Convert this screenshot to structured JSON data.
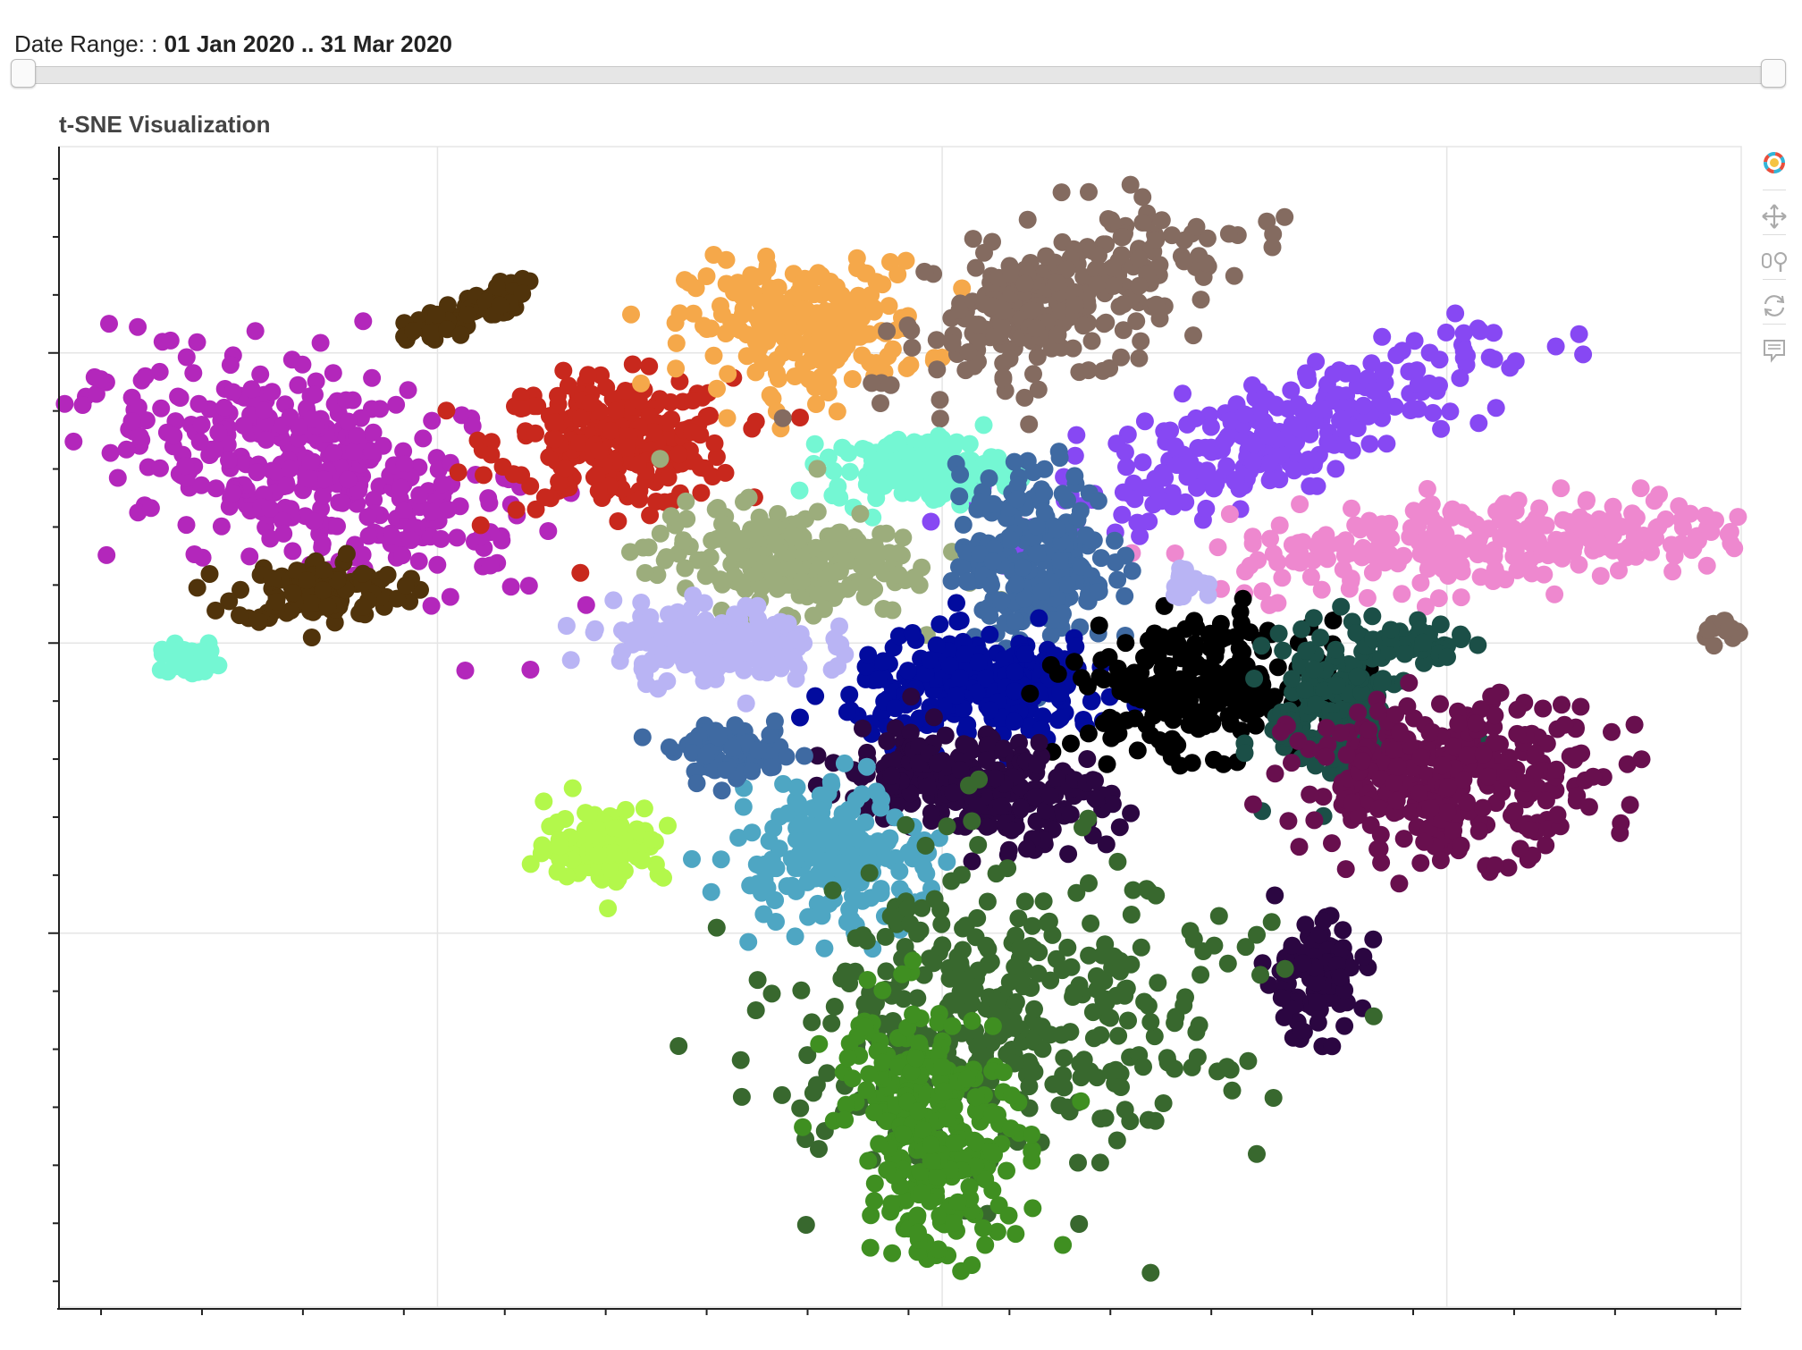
{
  "slider": {
    "label": "Date Range: :",
    "value": "01 Jan 2020 .. 31 Mar 2020",
    "start_fraction": 0.0,
    "end_fraction": 1.0
  },
  "toolbar": {
    "tools": [
      {
        "icon": "bokeh-logo-icon",
        "active": false
      },
      {
        "icon": "pan-icon",
        "active": true
      },
      {
        "icon": "wheel-zoom-icon",
        "active": false
      },
      {
        "icon": "reset-icon",
        "active": false
      },
      {
        "icon": "hover-icon",
        "active": true
      }
    ]
  },
  "chart_data": {
    "type": "scatter",
    "title": "t-SNE Visualization",
    "xlabel": "",
    "ylabel": "",
    "xlim": [
      -105,
      95
    ],
    "ylim": [
      -103,
      77
    ],
    "grid": true,
    "x_gridlines": [
      -60,
      0,
      60
    ],
    "y_gridlines": [
      -45,
      0,
      45
    ],
    "clusters": [
      {
        "color": "#b327bb",
        "x": -75,
        "y": 27,
        "sx": 14,
        "sy": 7,
        "n": 380,
        "angle": -30
      },
      {
        "color": "#c8281d",
        "x": -39,
        "y": 31,
        "sx": 7,
        "sy": 5,
        "n": 260,
        "angle": 0
      },
      {
        "color": "#50330b",
        "x": -74,
        "y": 8,
        "sx": 5,
        "sy": 2.5,
        "n": 120,
        "angle": 0
      },
      {
        "color": "#50330b",
        "x": -57,
        "y": 51,
        "sx": 4,
        "sy": 1.2,
        "n": 70,
        "angle": 30
      },
      {
        "color": "#f5a84a",
        "x": -16,
        "y": 49,
        "sx": 7,
        "sy": 5,
        "n": 240,
        "angle": 0
      },
      {
        "color": "#846b60",
        "x": 14,
        "y": 53,
        "sx": 10,
        "sy": 5,
        "n": 280,
        "angle": 30
      },
      {
        "color": "#8748f3",
        "x": 39,
        "y": 32,
        "sx": 14,
        "sy": 4,
        "n": 280,
        "angle": 25
      },
      {
        "color": "#ee88cf",
        "x": 67,
        "y": 16,
        "sx": 17,
        "sy": 3.5,
        "n": 300,
        "angle": 5
      },
      {
        "color": "#74f7d3",
        "x": -3,
        "y": 27,
        "sx": 5,
        "sy": 2.5,
        "n": 160,
        "angle": 0
      },
      {
        "color": "#9cad7c",
        "x": -19,
        "y": 13,
        "sx": 8,
        "sy": 4,
        "n": 220,
        "angle": -5
      },
      {
        "color": "#3f6aa2",
        "x": 11,
        "y": 13,
        "sx": 4.5,
        "sy": 7,
        "n": 240,
        "angle": 0
      },
      {
        "color": "#b9b4f4",
        "x": -27,
        "y": 0,
        "sx": 6,
        "sy": 3,
        "n": 200,
        "angle": 0
      },
      {
        "color": "#020b9e",
        "x": 5,
        "y": -7,
        "sx": 8,
        "sy": 4,
        "n": 260,
        "angle": 0
      },
      {
        "color": "#000000",
        "x": 30,
        "y": -7,
        "sx": 7,
        "sy": 5,
        "n": 240,
        "angle": 0
      },
      {
        "color": "#1b4f47",
        "x": 47,
        "y": -10,
        "sx": 4,
        "sy": 6,
        "n": 150,
        "angle": 0
      },
      {
        "color": "#1b4f47",
        "x": 56,
        "y": 0,
        "sx": 3,
        "sy": 1.3,
        "n": 50,
        "angle": 0
      },
      {
        "color": "#680f4e",
        "x": 60,
        "y": -21,
        "sx": 9,
        "sy": 6,
        "n": 320,
        "angle": 0
      },
      {
        "color": "#2b0641",
        "x": 4,
        "y": -22,
        "sx": 8,
        "sy": 4,
        "n": 260,
        "angle": -10
      },
      {
        "color": "#2b0641",
        "x": 44,
        "y": -52,
        "sx": 3,
        "sy": 4.5,
        "n": 100,
        "angle": 0
      },
      {
        "color": "#4ea6c3",
        "x": -13,
        "y": -33,
        "sx": 6,
        "sy": 5,
        "n": 200,
        "angle": -30
      },
      {
        "color": "#b3f84b",
        "x": -40,
        "y": -31,
        "sx": 3.5,
        "sy": 3,
        "n": 120,
        "angle": 0
      },
      {
        "color": "#38682e",
        "x": 6,
        "y": -59,
        "sx": 12,
        "sy": 13,
        "n": 380,
        "angle": -70
      },
      {
        "color": "#3f8f21",
        "x": -1,
        "y": -75,
        "sx": 5,
        "sy": 10,
        "n": 280,
        "angle": 10
      },
      {
        "color": "#3f6aa2",
        "x": -25,
        "y": -17,
        "sx": 3.5,
        "sy": 2,
        "n": 80,
        "angle": 0
      },
      {
        "color": "#74f7d3",
        "x": -89,
        "y": -3,
        "sx": 2,
        "sy": 1.2,
        "n": 40,
        "angle": 0
      },
      {
        "color": "#846b60",
        "x": 93,
        "y": 2,
        "sx": 1.5,
        "sy": 1,
        "n": 20,
        "angle": 0
      },
      {
        "color": "#b9b4f4",
        "x": 29,
        "y": 9,
        "sx": 1.5,
        "sy": 1,
        "n": 20,
        "angle": 0
      }
    ]
  }
}
